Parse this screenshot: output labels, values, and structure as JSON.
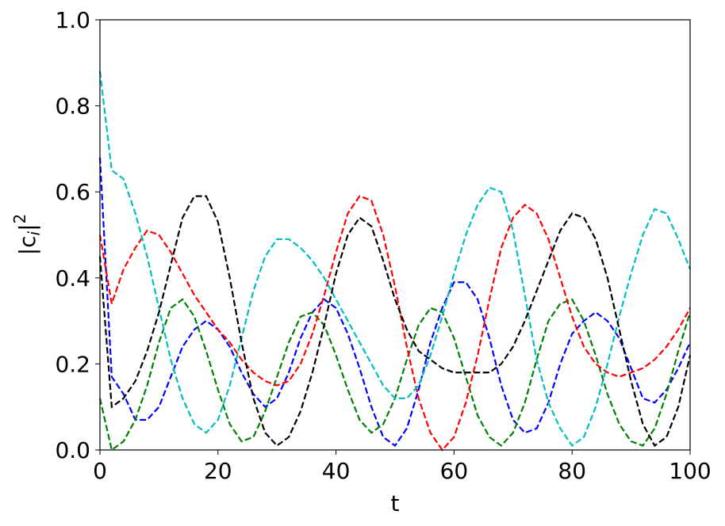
{
  "chart_data": {
    "type": "line",
    "xlabel": "t",
    "ylabel": [
      "|c",
      "i",
      "|",
      "2"
    ],
    "x": [
      0,
      2,
      4,
      6,
      8,
      10,
      12,
      14,
      16,
      18,
      20,
      22,
      24,
      26,
      28,
      30,
      32,
      34,
      36,
      38,
      40,
      42,
      44,
      46,
      48,
      50,
      52,
      54,
      56,
      58,
      60,
      62,
      64,
      66,
      68,
      70,
      72,
      74,
      76,
      78,
      80,
      82,
      84,
      86,
      88,
      90,
      92,
      94,
      96,
      98,
      100
    ],
    "series": [
      {
        "color": "#0000ff",
        "values": [
          0.68,
          0.17,
          0.13,
          0.07,
          0.07,
          0.1,
          0.17,
          0.24,
          0.28,
          0.3,
          0.28,
          0.24,
          0.18,
          0.13,
          0.1,
          0.12,
          0.18,
          0.26,
          0.32,
          0.35,
          0.33,
          0.27,
          0.19,
          0.1,
          0.03,
          0.01,
          0.05,
          0.14,
          0.25,
          0.33,
          0.39,
          0.39,
          0.35,
          0.26,
          0.15,
          0.07,
          0.04,
          0.05,
          0.11,
          0.2,
          0.27,
          0.3,
          0.32,
          0.3,
          0.26,
          0.19,
          0.12,
          0.11,
          0.14,
          0.19,
          0.25
        ]
      },
      {
        "color": "#008000",
        "values": [
          0.12,
          0.0,
          0.02,
          0.07,
          0.15,
          0.25,
          0.33,
          0.35,
          0.31,
          0.23,
          0.14,
          0.06,
          0.02,
          0.03,
          0.09,
          0.17,
          0.25,
          0.31,
          0.32,
          0.29,
          0.22,
          0.14,
          0.07,
          0.04,
          0.06,
          0.12,
          0.21,
          0.29,
          0.33,
          0.32,
          0.26,
          0.17,
          0.08,
          0.03,
          0.01,
          0.04,
          0.11,
          0.21,
          0.3,
          0.34,
          0.35,
          0.3,
          0.22,
          0.13,
          0.06,
          0.02,
          0.01,
          0.05,
          0.13,
          0.23,
          0.32
        ]
      },
      {
        "color": "#ff0000",
        "values": [
          0.5,
          0.34,
          0.42,
          0.47,
          0.51,
          0.5,
          0.46,
          0.41,
          0.36,
          0.32,
          0.28,
          0.25,
          0.21,
          0.18,
          0.16,
          0.15,
          0.16,
          0.2,
          0.27,
          0.36,
          0.46,
          0.55,
          0.59,
          0.58,
          0.5,
          0.38,
          0.24,
          0.12,
          0.04,
          0.0,
          0.03,
          0.11,
          0.22,
          0.35,
          0.47,
          0.54,
          0.57,
          0.55,
          0.49,
          0.4,
          0.31,
          0.24,
          0.2,
          0.18,
          0.17,
          0.18,
          0.19,
          0.21,
          0.24,
          0.28,
          0.33
        ]
      },
      {
        "color": "#00bfbf",
        "values": [
          0.88,
          0.65,
          0.63,
          0.55,
          0.45,
          0.33,
          0.21,
          0.12,
          0.06,
          0.04,
          0.07,
          0.15,
          0.26,
          0.37,
          0.45,
          0.49,
          0.49,
          0.47,
          0.44,
          0.4,
          0.35,
          0.3,
          0.25,
          0.2,
          0.15,
          0.12,
          0.12,
          0.15,
          0.22,
          0.31,
          0.41,
          0.5,
          0.57,
          0.61,
          0.6,
          0.51,
          0.36,
          0.21,
          0.11,
          0.05,
          0.01,
          0.03,
          0.1,
          0.2,
          0.31,
          0.41,
          0.5,
          0.56,
          0.55,
          0.49,
          0.42
        ]
      },
      {
        "color": "#000000",
        "values": [
          0.45,
          0.1,
          0.12,
          0.16,
          0.23,
          0.32,
          0.43,
          0.54,
          0.59,
          0.59,
          0.53,
          0.4,
          0.25,
          0.12,
          0.04,
          0.01,
          0.03,
          0.09,
          0.18,
          0.29,
          0.41,
          0.5,
          0.54,
          0.52,
          0.44,
          0.35,
          0.28,
          0.23,
          0.21,
          0.19,
          0.18,
          0.18,
          0.18,
          0.18,
          0.2,
          0.24,
          0.3,
          0.37,
          0.44,
          0.51,
          0.55,
          0.54,
          0.49,
          0.4,
          0.28,
          0.16,
          0.06,
          0.01,
          0.03,
          0.1,
          0.22
        ]
      }
    ],
    "xlim": [
      0,
      100
    ],
    "xticks": [
      0,
      20,
      40,
      60,
      80,
      100
    ],
    "ylim": [
      0,
      1
    ],
    "yticks": [
      {
        "value": 0,
        "label": "0.0"
      },
      {
        "value": 0.2,
        "label": "0.2"
      },
      {
        "value": 0.4,
        "label": "0.4"
      },
      {
        "value": 0.6,
        "label": "0.6"
      },
      {
        "value": 0.8,
        "label": "0.8"
      },
      {
        "value": 1,
        "label": "1.0"
      }
    ],
    "linestyle": "dashed"
  }
}
